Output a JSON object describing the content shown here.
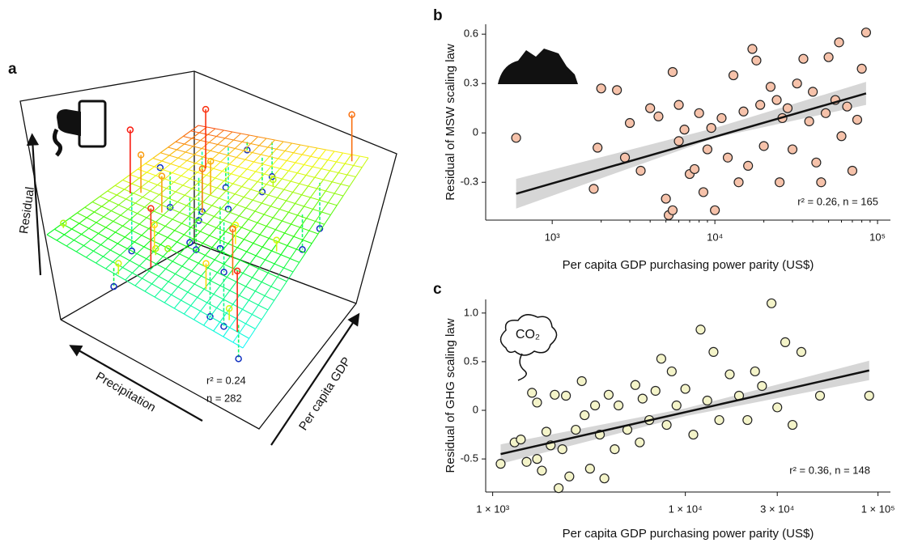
{
  "chart_data": [
    {
      "type": "surface3d",
      "panel": "a",
      "z_label": "Residual",
      "x_label": "Precipitation",
      "y_label": "Per capita GDP",
      "annotations": [
        "r² = 0.24",
        "n = 282"
      ]
    },
    {
      "type": "scatter",
      "panel": "b",
      "y_label": "Residual of MSW scaling law",
      "x_label": "Per capita GDP purchasing power parity (US$)",
      "xscale": "log",
      "xlim": [
        390,
        120000
      ],
      "ylim": [
        -0.53,
        0.66
      ],
      "xticks": [
        {
          "value": 1000,
          "label": "10³"
        },
        {
          "value": 10000,
          "label": "10⁴"
        },
        {
          "value": 100000,
          "label": "10⁵"
        }
      ],
      "yticks": [
        -0.3,
        0,
        0.3,
        0.6
      ],
      "series": [
        {
          "color": "#f6c2aa",
          "edgecolor": "#222222",
          "x": [
            600,
            2000,
            2500,
            1900,
            1800,
            2800,
            3000,
            3500,
            4000,
            4500,
            5000,
            5200,
            5500,
            5500,
            6000,
            6000,
            6500,
            7000,
            7500,
            8000,
            8500,
            9000,
            9500,
            10000,
            11000,
            12000,
            13000,
            14000,
            15000,
            16000,
            17000,
            18000,
            19000,
            20000,
            22000,
            24000,
            25000,
            26000,
            28000,
            30000,
            32000,
            35000,
            38000,
            40000,
            42000,
            45000,
            48000,
            50000,
            55000,
            58000,
            60000,
            65000,
            70000,
            75000,
            80000,
            85000
          ],
          "values": [
            -0.03,
            0.27,
            0.26,
            -0.09,
            -0.34,
            -0.15,
            0.06,
            -0.23,
            0.15,
            0.1,
            -0.4,
            -0.5,
            -0.47,
            0.37,
            0.17,
            -0.05,
            0.02,
            -0.25,
            -0.22,
            0.12,
            -0.36,
            -0.1,
            0.03,
            -0.47,
            0.09,
            -0.15,
            0.35,
            -0.3,
            0.13,
            -0.2,
            0.51,
            0.44,
            0.17,
            -0.08,
            0.28,
            0.2,
            -0.3,
            0.09,
            0.15,
            -0.1,
            0.3,
            0.45,
            0.07,
            0.25,
            -0.18,
            -0.3,
            0.12,
            0.46,
            0.2,
            0.55,
            -0.02,
            0.16,
            -0.23,
            0.08,
            0.39,
            0.61
          ]
        }
      ],
      "fit": {
        "color": "#111111",
        "x": [
          600,
          85000
        ],
        "values": [
          -0.37,
          0.24
        ]
      },
      "band": {
        "color": "#cccccc",
        "x": [
          600,
          10000,
          85000
        ],
        "lower": [
          -0.46,
          -0.03,
          0.17
        ],
        "upper": [
          -0.28,
          0.03,
          0.31
        ]
      },
      "annotation": "r² = 0.26, n = 165"
    },
    {
      "type": "scatter",
      "panel": "c",
      "y_label": "Residual of GHG scaling law",
      "x_label": "Per capita GDP purchasing power parity (US$)",
      "icon_text": "CO₂",
      "xscale": "log",
      "xlim": [
        920,
        116000
      ],
      "ylim": [
        -0.84,
        1.14
      ],
      "xticks": [
        {
          "value": 1000,
          "label": "1 × 10³"
        },
        {
          "value": 10000,
          "label": "1 × 10⁴"
        },
        {
          "value": 30000,
          "label": "3 × 10⁴"
        },
        {
          "value": 100000,
          "label": "1 × 10⁵"
        }
      ],
      "yticks": [
        -0.5,
        0,
        0.5,
        {
          "value": 1,
          "label": "1.0"
        }
      ],
      "series": [
        {
          "color": "#f4f4c9",
          "edgecolor": "#222222",
          "x": [
            1100,
            1300,
            1400,
            1500,
            1600,
            1700,
            1700,
            1800,
            1900,
            2000,
            2100,
            2200,
            2300,
            2400,
            2500,
            2700,
            2900,
            3000,
            3200,
            3400,
            3600,
            3800,
            4000,
            4300,
            4500,
            5000,
            5500,
            5800,
            6000,
            6500,
            7000,
            7500,
            8000,
            8500,
            9000,
            10000,
            11000,
            12000,
            13000,
            14000,
            15000,
            17000,
            19000,
            21000,
            23000,
            25000,
            28000,
            30000,
            33000,
            36000,
            40000,
            50000,
            90000
          ],
          "values": [
            -0.55,
            -0.33,
            -0.3,
            -0.53,
            0.18,
            -0.5,
            0.08,
            -0.62,
            -0.22,
            -0.36,
            0.16,
            -0.8,
            -0.4,
            0.15,
            -0.68,
            -0.2,
            0.3,
            -0.05,
            -0.6,
            0.05,
            -0.25,
            -0.7,
            0.16,
            -0.4,
            0.05,
            -0.2,
            0.26,
            -0.33,
            0.12,
            -0.1,
            0.2,
            0.53,
            -0.15,
            0.4,
            0.05,
            0.22,
            -0.25,
            0.83,
            0.1,
            0.6,
            -0.1,
            0.37,
            0.15,
            -0.1,
            0.4,
            0.25,
            1.1,
            0.03,
            0.7,
            -0.15,
            0.6,
            0.15,
            0.15
          ]
        }
      ],
      "fit": {
        "color": "#111111",
        "x": [
          1100,
          90000
        ],
        "values": [
          -0.45,
          0.41
        ]
      },
      "band": {
        "color": "#cccccc",
        "x": [
          1100,
          10000,
          90000
        ],
        "lower": [
          -0.55,
          -0.06,
          0.31
        ],
        "upper": [
          -0.35,
          0.02,
          0.51
        ]
      },
      "annotation": "r² = 0.36, n = 148"
    }
  ]
}
